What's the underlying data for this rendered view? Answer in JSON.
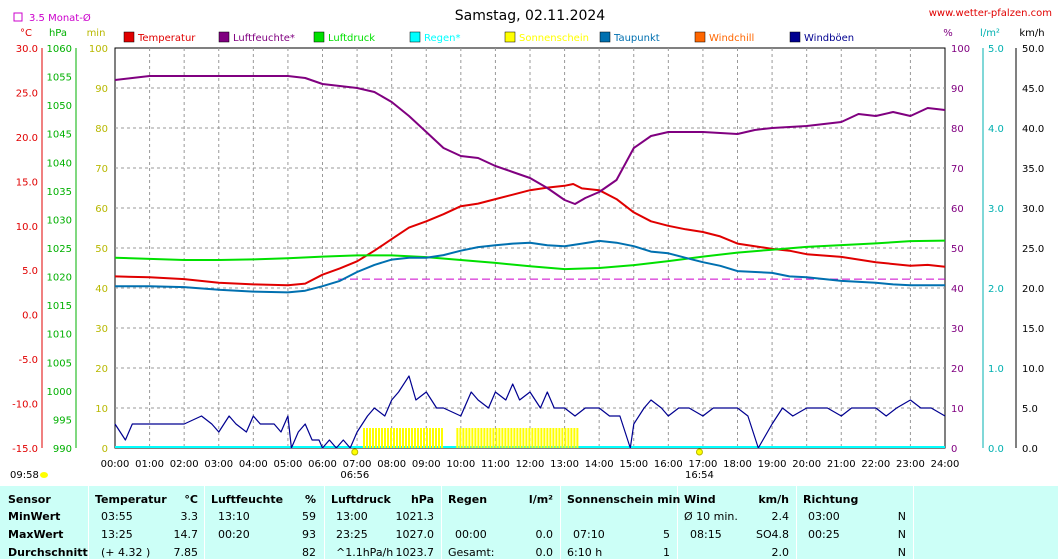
{
  "header": {
    "title": "Samstag, 02.11.2024",
    "site": "www.wetter-pfalzen.com",
    "avg_box_label": "3.5 Monat-Ø"
  },
  "units": {
    "temp": "°C",
    "press": "hPa",
    "min": "min",
    "pct": "%",
    "rain": "l/m²",
    "wind": "km/h"
  },
  "legend": [
    {
      "name": "Temperatur",
      "color": "#e00000"
    },
    {
      "name": "Luftfeuchte*",
      "color": "#800080"
    },
    {
      "name": "Luftdruck",
      "color": "#00e000"
    },
    {
      "name": "Regen*",
      "color": "#00ffff"
    },
    {
      "name": "Sonnenschein",
      "color": "#ffff00"
    },
    {
      "name": "Taupunkt",
      "color": "#0070b0"
    },
    {
      "name": "Windchill",
      "color": "#ff6600"
    },
    {
      "name": "Windböen",
      "color": "#000090"
    }
  ],
  "markers": {
    "sunrise": "06:56",
    "sunset": "16:54",
    "moon": "09:58"
  },
  "chart_data": {
    "type": "line",
    "x_range_hours": [
      0,
      24
    ],
    "x_ticks": [
      "00:00",
      "01:00",
      "02:00",
      "03:00",
      "04:00",
      "05:00",
      "06:00",
      "07:00",
      "08:00",
      "09:00",
      "10:00",
      "11:00",
      "12:00",
      "13:00",
      "14:00",
      "15:00",
      "16:00",
      "17:00",
      "18:00",
      "19:00",
      "20:00",
      "21:00",
      "22:00",
      "23:00",
      "24:00"
    ],
    "axes": {
      "temp": {
        "min": -15,
        "max": 30,
        "ticks": [
          "30.0",
          "25.0",
          "20.0",
          "15.0",
          "10.0",
          "5.0",
          "0.0",
          "-5.0",
          "-10.0",
          "-15.0"
        ]
      },
      "pressure": {
        "min": 990,
        "max": 1060,
        "ticks": [
          "1060",
          "1055",
          "1050",
          "1045",
          "1040",
          "1035",
          "1030",
          "1025",
          "1020",
          "1015",
          "1010",
          "1005",
          "1000",
          "995",
          "990"
        ]
      },
      "minutes": {
        "min": 0,
        "max": 100,
        "ticks": [
          "100",
          "90",
          "80",
          "70",
          "60",
          "50",
          "40",
          "30",
          "20",
          "10",
          "0"
        ]
      },
      "humidity": {
        "min": 0,
        "max": 100,
        "ticks": [
          "100",
          "90",
          "80",
          "70",
          "60",
          "50",
          "40",
          "30",
          "20",
          "10",
          "0"
        ]
      },
      "rain": {
        "min": 0,
        "max": 5,
        "ticks": [
          "5.0",
          "4.0",
          "3.0",
          "2.0",
          "1.0",
          "0.0"
        ]
      },
      "wind": {
        "min": 0,
        "max": 50,
        "ticks": [
          "50.0",
          "45.0",
          "40.0",
          "35.0",
          "30.0",
          "25.0",
          "20.0",
          "15.0",
          "10.0",
          "5.0",
          "0.0"
        ]
      }
    },
    "temp_avg_line": 4.0,
    "series": [
      {
        "name": "Temperatur",
        "axis": "temp",
        "color": "#e00000",
        "points": [
          [
            0,
            4.3
          ],
          [
            1,
            4.2
          ],
          [
            2,
            4.0
          ],
          [
            3,
            3.6
          ],
          [
            4,
            3.4
          ],
          [
            5,
            3.3
          ],
          [
            5.5,
            3.5
          ],
          [
            6,
            4.5
          ],
          [
            6.5,
            5.2
          ],
          [
            7,
            6.0
          ],
          [
            7.5,
            7.2
          ],
          [
            8,
            8.5
          ],
          [
            8.5,
            9.8
          ],
          [
            9,
            10.5
          ],
          [
            9.5,
            11.3
          ],
          [
            10,
            12.2
          ],
          [
            10.5,
            12.5
          ],
          [
            11,
            13.0
          ],
          [
            11.5,
            13.5
          ],
          [
            12,
            14.0
          ],
          [
            12.5,
            14.3
          ],
          [
            13,
            14.5
          ],
          [
            13.25,
            14.7
          ],
          [
            13.5,
            14.2
          ],
          [
            14,
            14.0
          ],
          [
            14.5,
            13.0
          ],
          [
            15,
            11.5
          ],
          [
            15.5,
            10.5
          ],
          [
            16,
            10.0
          ],
          [
            16.5,
            9.6
          ],
          [
            17,
            9.3
          ],
          [
            17.5,
            8.8
          ],
          [
            18,
            8.0
          ],
          [
            18.5,
            7.7
          ],
          [
            19,
            7.4
          ],
          [
            19.5,
            7.2
          ],
          [
            20,
            6.8
          ],
          [
            21,
            6.5
          ],
          [
            22,
            5.9
          ],
          [
            23,
            5.5
          ],
          [
            23.5,
            5.6
          ],
          [
            24,
            5.4
          ]
        ]
      },
      {
        "name": "Luftfeuchte*",
        "axis": "humidity",
        "color": "#800080",
        "points": [
          [
            0,
            92
          ],
          [
            0.5,
            92.5
          ],
          [
            1,
            93
          ],
          [
            2,
            93
          ],
          [
            3,
            93
          ],
          [
            4,
            93
          ],
          [
            5,
            93
          ],
          [
            5.5,
            92.5
          ],
          [
            6,
            91
          ],
          [
            6.5,
            90.5
          ],
          [
            7,
            90
          ],
          [
            7.5,
            89
          ],
          [
            8,
            86.5
          ],
          [
            8.5,
            83
          ],
          [
            9,
            79
          ],
          [
            9.5,
            75
          ],
          [
            10,
            73
          ],
          [
            10.5,
            72.5
          ],
          [
            11,
            70.5
          ],
          [
            11.5,
            69
          ],
          [
            12,
            67.5
          ],
          [
            12.5,
            65
          ],
          [
            13,
            62
          ],
          [
            13.3,
            61
          ],
          [
            13.6,
            62.5
          ],
          [
            14,
            64
          ],
          [
            14.5,
            67
          ],
          [
            15,
            75
          ],
          [
            15.5,
            78
          ],
          [
            16,
            79
          ],
          [
            17,
            79
          ],
          [
            18,
            78.5
          ],
          [
            18.5,
            79.5
          ],
          [
            19,
            80
          ],
          [
            20,
            80.5
          ],
          [
            21,
            81.5
          ],
          [
            21.5,
            83.5
          ],
          [
            22,
            83
          ],
          [
            22.5,
            84
          ],
          [
            23,
            83
          ],
          [
            23.5,
            85
          ],
          [
            24,
            84.5
          ]
        ]
      },
      {
        "name": "Luftdruck",
        "axis": "pressure",
        "color": "#00e000",
        "points": [
          [
            0,
            1023.3
          ],
          [
            1,
            1023.1
          ],
          [
            2,
            1022.9
          ],
          [
            3,
            1022.9
          ],
          [
            4,
            1023.0
          ],
          [
            5,
            1023.2
          ],
          [
            6,
            1023.5
          ],
          [
            7,
            1023.7
          ],
          [
            8,
            1023.7
          ],
          [
            9,
            1023.4
          ],
          [
            10,
            1022.9
          ],
          [
            11,
            1022.4
          ],
          [
            12,
            1021.8
          ],
          [
            13,
            1021.3
          ],
          [
            14,
            1021.5
          ],
          [
            15,
            1022.0
          ],
          [
            16,
            1022.7
          ],
          [
            17,
            1023.5
          ],
          [
            18,
            1024.2
          ],
          [
            19,
            1024.7
          ],
          [
            20,
            1025.2
          ],
          [
            21,
            1025.5
          ],
          [
            22,
            1025.8
          ],
          [
            23,
            1026.2
          ],
          [
            24,
            1026.3
          ]
        ]
      },
      {
        "name": "Taupunkt",
        "axis": "temp",
        "color": "#0070b0",
        "points": [
          [
            0,
            3.2
          ],
          [
            1,
            3.2
          ],
          [
            2,
            3.1
          ],
          [
            3,
            2.8
          ],
          [
            4,
            2.6
          ],
          [
            5,
            2.5
          ],
          [
            5.5,
            2.7
          ],
          [
            6,
            3.2
          ],
          [
            6.5,
            3.8
          ],
          [
            7,
            4.8
          ],
          [
            7.5,
            5.6
          ],
          [
            8,
            6.2
          ],
          [
            8.5,
            6.4
          ],
          [
            9,
            6.4
          ],
          [
            9.5,
            6.7
          ],
          [
            10,
            7.2
          ],
          [
            10.5,
            7.6
          ],
          [
            11,
            7.8
          ],
          [
            11.5,
            8.0
          ],
          [
            12,
            8.1
          ],
          [
            12.5,
            7.8
          ],
          [
            13,
            7.7
          ],
          [
            13.5,
            8.0
          ],
          [
            14,
            8.3
          ],
          [
            14.5,
            8.1
          ],
          [
            15,
            7.7
          ],
          [
            15.5,
            7.1
          ],
          [
            16,
            6.9
          ],
          [
            16.5,
            6.4
          ],
          [
            17,
            5.9
          ],
          [
            17.5,
            5.5
          ],
          [
            18,
            4.9
          ],
          [
            19,
            4.7
          ],
          [
            19.5,
            4.3
          ],
          [
            20,
            4.2
          ],
          [
            21,
            3.8
          ],
          [
            22,
            3.6
          ],
          [
            22.5,
            3.4
          ],
          [
            23,
            3.3
          ],
          [
            24,
            3.3
          ]
        ]
      },
      {
        "name": "Windböen",
        "axis": "wind",
        "color": "#000090",
        "points": [
          [
            0,
            3
          ],
          [
            0.3,
            1
          ],
          [
            0.5,
            3
          ],
          [
            1,
            3
          ],
          [
            1.5,
            3
          ],
          [
            2,
            3
          ],
          [
            2.5,
            4
          ],
          [
            2.8,
            3
          ],
          [
            3,
            2
          ],
          [
            3.3,
            4
          ],
          [
            3.5,
            3
          ],
          [
            3.8,
            2
          ],
          [
            4,
            4
          ],
          [
            4.2,
            3
          ],
          [
            4.6,
            3
          ],
          [
            4.8,
            2
          ],
          [
            5,
            4
          ],
          [
            5.1,
            0
          ],
          [
            5.3,
            2
          ],
          [
            5.5,
            3
          ],
          [
            5.7,
            1
          ],
          [
            5.9,
            1
          ],
          [
            6,
            0
          ],
          [
            6.2,
            1
          ],
          [
            6.4,
            0
          ],
          [
            6.6,
            1
          ],
          [
            6.8,
            0
          ],
          [
            7,
            2
          ],
          [
            7.3,
            4
          ],
          [
            7.5,
            5
          ],
          [
            7.8,
            4
          ],
          [
            8,
            6
          ],
          [
            8.2,
            7
          ],
          [
            8.5,
            9
          ],
          [
            8.7,
            6
          ],
          [
            9,
            7
          ],
          [
            9.3,
            5
          ],
          [
            9.5,
            5
          ],
          [
            10,
            4
          ],
          [
            10.3,
            7
          ],
          [
            10.5,
            6
          ],
          [
            10.8,
            5
          ],
          [
            11,
            7
          ],
          [
            11.3,
            6
          ],
          [
            11.5,
            8
          ],
          [
            11.7,
            6
          ],
          [
            12,
            7
          ],
          [
            12.3,
            5
          ],
          [
            12.5,
            7
          ],
          [
            12.7,
            5
          ],
          [
            13,
            5
          ],
          [
            13.3,
            4
          ],
          [
            13.6,
            5
          ],
          [
            14,
            5
          ],
          [
            14.3,
            4
          ],
          [
            14.6,
            4
          ],
          [
            14.9,
            0
          ],
          [
            15,
            3
          ],
          [
            15.3,
            5
          ],
          [
            15.5,
            6
          ],
          [
            15.8,
            5
          ],
          [
            16,
            4
          ],
          [
            16.3,
            5
          ],
          [
            16.6,
            5
          ],
          [
            17,
            4
          ],
          [
            17.3,
            5
          ],
          [
            17.6,
            5
          ],
          [
            18,
            5
          ],
          [
            18.3,
            4
          ],
          [
            18.6,
            0
          ],
          [
            19,
            3
          ],
          [
            19.3,
            5
          ],
          [
            19.6,
            4
          ],
          [
            20,
            5
          ],
          [
            20.3,
            5
          ],
          [
            20.6,
            5
          ],
          [
            21,
            4
          ],
          [
            21.3,
            5
          ],
          [
            21.6,
            5
          ],
          [
            22,
            5
          ],
          [
            22.3,
            4
          ],
          [
            22.6,
            5
          ],
          [
            23,
            6
          ],
          [
            23.3,
            5
          ],
          [
            23.6,
            5
          ],
          [
            24,
            4
          ]
        ]
      }
    ],
    "sunshine_minutes": [
      {
        "from": 7.2,
        "to": 9.5,
        "value": 5
      },
      {
        "from": 9.9,
        "to": 13.4,
        "value": 5
      }
    ]
  },
  "stats": {
    "headers": {
      "sensor": "Sensor",
      "temperature": "Temperatur",
      "temp_unit": "°C",
      "humidity": "Luftfeuchte",
      "humidity_unit": "%",
      "pressure": "Luftdruck",
      "pressure_unit": "hPa",
      "rain": "Regen",
      "rain_unit": "l/m²",
      "sun": "Sonnenschein min",
      "wind": "Wind",
      "wind_unit": "km/h",
      "direction": "Richtung"
    },
    "rows": [
      {
        "label": "MinWert",
        "temp_time": "03:55",
        "temp_val": "3.3",
        "hum_time": "13:10",
        "hum_val": "59",
        "press_time": "13:00",
        "press_val": "1021.3",
        "rain_time": "",
        "rain_val": "",
        "sun_time": "",
        "sun_val": "",
        "wind_time": "Ø 10 min.",
        "wind_dir": "",
        "wind_val": "2.4",
        "dir_time": "03:00",
        "dir_val": "N"
      },
      {
        "label": "MaxWert",
        "temp_time": "13:25",
        "temp_val": "14.7",
        "hum_time": "00:20",
        "hum_val": "93",
        "press_time": "23:25",
        "press_val": "1027.0",
        "rain_time": "00:00",
        "rain_val": "0.0",
        "sun_time": "07:10",
        "sun_val": "5",
        "wind_time": "08:15",
        "wind_dir": "SO",
        "wind_val": "4.8",
        "dir_time": "00:25",
        "dir_val": "N"
      },
      {
        "label": "Durchschnitt",
        "temp_time": "(+ 4.32 )",
        "temp_val": "7.85",
        "hum_time": "",
        "hum_val": "82",
        "press_time": "^1.1hPa/h",
        "press_val": "1023.7",
        "rain_time": "Gesamt:",
        "rain_val": "0.0",
        "sun_time": "6:10 h",
        "sun_val": "1",
        "wind_time": "",
        "wind_dir": "",
        "wind_val": "2.0",
        "dir_time": "",
        "dir_val": "N"
      }
    ]
  }
}
